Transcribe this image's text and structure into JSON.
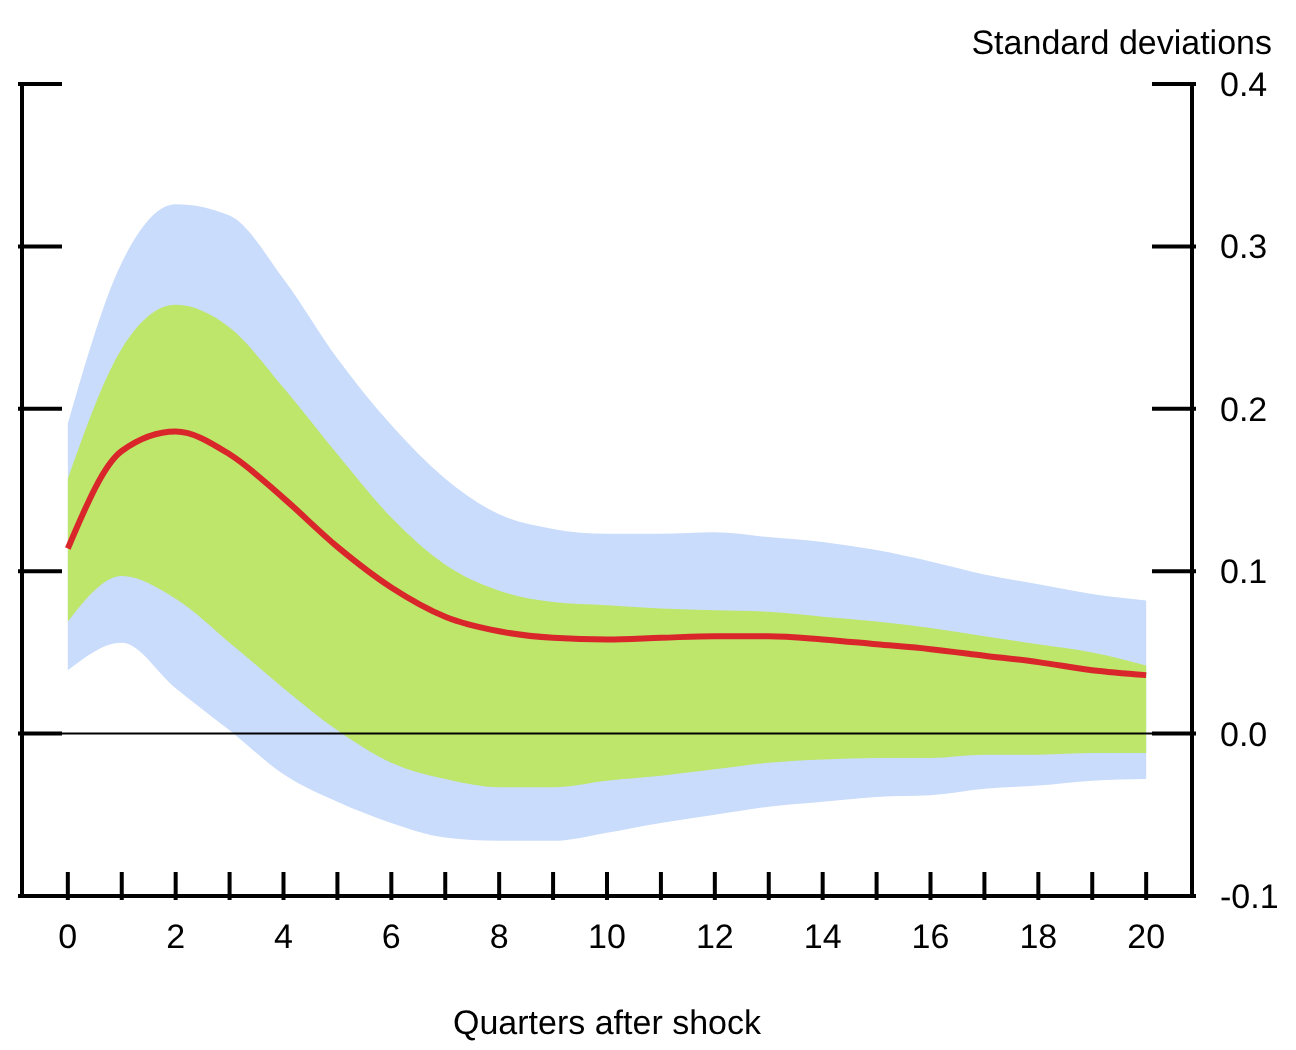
{
  "chart_data": {
    "type": "line",
    "xlabel": "Quarters after shock",
    "ylabel": "Standard deviations",
    "x": [
      0,
      1,
      2,
      3,
      4,
      5,
      6,
      7,
      8,
      9,
      10,
      11,
      12,
      13,
      14,
      15,
      16,
      17,
      18,
      19,
      20
    ],
    "series": [
      {
        "color": "#d8262b",
        "values": [
          0.114,
          0.174,
          0.186,
          0.172,
          0.145,
          0.115,
          0.09,
          0.072,
          0.063,
          0.059,
          0.058,
          0.059,
          0.06,
          0.06,
          0.058,
          0.055,
          0.052,
          0.048,
          0.044,
          0.039,
          0.036
        ],
        "lower": [
          0.039,
          0.056,
          0.028,
          0.002,
          -0.025,
          -0.042,
          -0.055,
          -0.064,
          -0.066,
          -0.066,
          -0.061,
          -0.055,
          -0.05,
          -0.045,
          -0.042,
          -0.039,
          -0.038,
          -0.034,
          -0.032,
          -0.029,
          -0.028
        ],
        "upper": [
          0.191,
          0.29,
          0.326,
          0.319,
          0.28,
          0.231,
          0.19,
          0.157,
          0.135,
          0.126,
          0.123,
          0.123,
          0.124,
          0.121,
          0.118,
          0.113,
          0.106,
          0.098,
          0.092,
          0.086,
          0.082
        ]
      },
      {
        "color": "#d8262b",
        "values": [
          null,
          null,
          null,
          null,
          null,
          null,
          null,
          null,
          null,
          null,
          null,
          null,
          null,
          null,
          null,
          null,
          null,
          null,
          null,
          null,
          null
        ],
        "lower": [
          0.069,
          0.097,
          0.083,
          0.056,
          0.028,
          0.002,
          -0.018,
          -0.028,
          -0.033,
          -0.033,
          -0.029,
          -0.026,
          -0.022,
          -0.018,
          -0.016,
          -0.015,
          -0.015,
          -0.013,
          -0.013,
          -0.012,
          -0.012
        ],
        "upper": [
          0.157,
          0.237,
          0.264,
          0.25,
          0.213,
          0.172,
          0.133,
          0.104,
          0.088,
          0.081,
          0.079,
          0.077,
          0.076,
          0.075,
          0.072,
          0.069,
          0.065,
          0.06,
          0.055,
          0.05,
          0.042
        ]
      }
    ],
    "xlim": [
      -0.85,
      20.85
    ],
    "xticks": [
      0,
      {
        "value": 1,
        "label": null
      },
      2,
      {
        "value": 3,
        "label": null
      },
      4,
      {
        "value": 5,
        "label": null
      },
      6,
      {
        "value": 7,
        "label": null
      },
      8,
      {
        "value": 9,
        "label": null
      },
      10,
      {
        "value": 11,
        "label": null
      },
      12,
      {
        "value": 13,
        "label": null
      },
      14,
      {
        "value": 15,
        "label": null
      },
      16,
      {
        "value": 17,
        "label": null
      },
      18,
      {
        "value": 19,
        "label": null
      },
      20
    ],
    "ylim": [
      -0.1,
      0.4
    ],
    "yticks": [
      {
        "value": -0.1,
        "label": "-0.1"
      },
      {
        "value": 0,
        "label": "0.0"
      },
      0.1,
      0.2,
      0.3,
      0.4
    ],
    "ref_lines": [
      {
        "axis": "y",
        "value": 0,
        "color": "#000000"
      }
    ],
    "grid": false,
    "legend": false
  }
}
